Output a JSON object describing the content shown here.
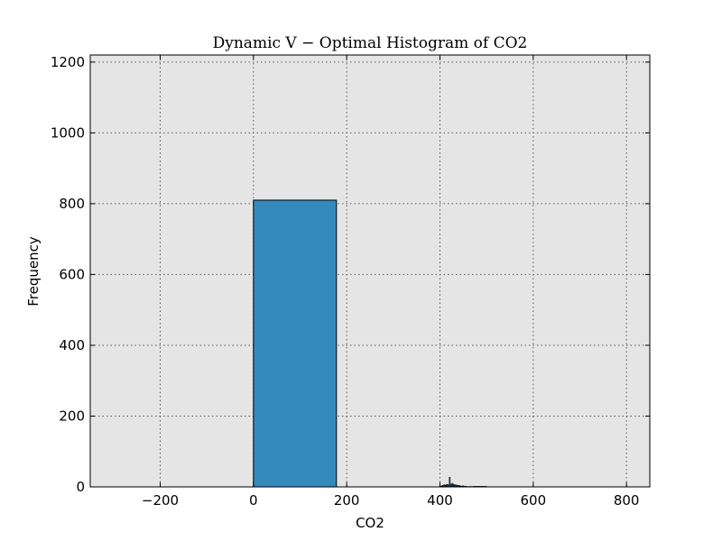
{
  "chart_data": {
    "type": "bar",
    "title": "Dynamic V − Optimal Histogram of CO2",
    "xlabel": "CO2",
    "ylabel": "Frequency",
    "xlim": [
      -350,
      850
    ],
    "ylim": [
      0,
      1220
    ],
    "xticks": [
      -200,
      0,
      200,
      400,
      600,
      800
    ],
    "yticks": [
      0,
      200,
      400,
      600,
      800,
      1000,
      1200
    ],
    "grid": true,
    "colors": {
      "background": "#e5e5e5",
      "bar": "#348abd",
      "edge": "#000000"
    },
    "bins": [
      {
        "x0": 0,
        "x1": 178,
        "value": 810
      },
      {
        "x0": 402,
        "x1": 404,
        "value": 2
      },
      {
        "x0": 404,
        "x1": 406,
        "value": 4
      },
      {
        "x0": 406,
        "x1": 408,
        "value": 3
      },
      {
        "x0": 408,
        "x1": 410,
        "value": 6
      },
      {
        "x0": 410,
        "x1": 412,
        "value": 5
      },
      {
        "x0": 412,
        "x1": 414,
        "value": 4
      },
      {
        "x0": 414,
        "x1": 416,
        "value": 7
      },
      {
        "x0": 416,
        "x1": 418,
        "value": 5
      },
      {
        "x0": 418,
        "x1": 420,
        "value": 6
      },
      {
        "x0": 420,
        "x1": 422,
        "value": 27
      },
      {
        "x0": 422,
        "x1": 424,
        "value": 8
      },
      {
        "x0": 424,
        "x1": 426,
        "value": 6
      },
      {
        "x0": 426,
        "x1": 428,
        "value": 10
      },
      {
        "x0": 428,
        "x1": 430,
        "value": 7
      },
      {
        "x0": 430,
        "x1": 432,
        "value": 5
      },
      {
        "x0": 432,
        "x1": 434,
        "value": 6
      },
      {
        "x0": 434,
        "x1": 436,
        "value": 4
      },
      {
        "x0": 436,
        "x1": 438,
        "value": 5
      },
      {
        "x0": 438,
        "x1": 440,
        "value": 3
      },
      {
        "x0": 440,
        "x1": 442,
        "value": 4
      },
      {
        "x0": 442,
        "x1": 444,
        "value": 3
      },
      {
        "x0": 444,
        "x1": 446,
        "value": 2
      },
      {
        "x0": 446,
        "x1": 448,
        "value": 2
      },
      {
        "x0": 448,
        "x1": 450,
        "value": 3
      },
      {
        "x0": 450,
        "x1": 452,
        "value": 2
      },
      {
        "x0": 452,
        "x1": 454,
        "value": 1
      },
      {
        "x0": 454,
        "x1": 456,
        "value": 2
      },
      {
        "x0": 456,
        "x1": 460,
        "value": 1
      },
      {
        "x0": 460,
        "x1": 465,
        "value": 1
      },
      {
        "x0": 465,
        "x1": 472,
        "value": 1
      },
      {
        "x0": 472,
        "x1": 480,
        "value": 1
      },
      {
        "x0": 480,
        "x1": 490,
        "value": 1
      },
      {
        "x0": 490,
        "x1": 500,
        "value": 1
      }
    ]
  }
}
